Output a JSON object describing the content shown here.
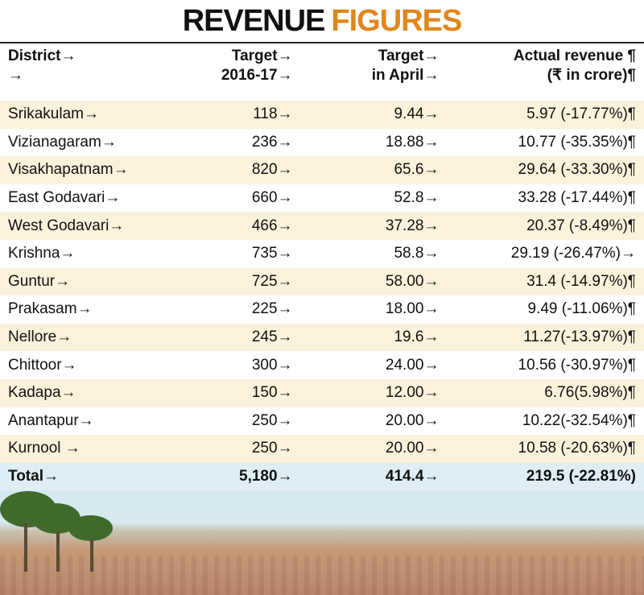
{
  "title": {
    "part1": "REVENUE",
    "part2": "FIGURES"
  },
  "headers": [
    {
      "line1": "District→",
      "line2": "→"
    },
    {
      "line1": "Target→",
      "line2": "2016-17→"
    },
    {
      "line1": "Target→",
      "line2": "in April→"
    },
    {
      "line1": "Actual revenue ¶",
      "line2": "(₹ in crore)¶"
    }
  ],
  "rows": [
    {
      "district": "Srikakulam→",
      "target": "118→",
      "april": "9.44→",
      "actual": "5.97 (-17.77%)¶"
    },
    {
      "district": "Vizianagaram→",
      "target": "236→",
      "april": "18.88→",
      "actual": "10.77 (-35.35%)¶"
    },
    {
      "district": "Visakhapatnam→",
      "target": "820→",
      "april": "65.6→",
      "actual": "29.64 (-33.30%)¶"
    },
    {
      "district": "East Godavari→",
      "target": "660→",
      "april": "52.8→",
      "actual": "33.28 (-17.44%)¶"
    },
    {
      "district": "West Godavari→",
      "target": "466→",
      "april": "37.28→",
      "actual": "20.37 (-8.49%)¶"
    },
    {
      "district": "Krishna→",
      "target": "735→",
      "april": "58.8→",
      "actual": "29.19 (-26.47%)→"
    },
    {
      "district": "Guntur→",
      "target": "725→",
      "april": "58.00→",
      "actual": "31.4 (-14.97%)¶"
    },
    {
      "district": "Prakasam→",
      "target": "225→",
      "april": "18.00→",
      "actual": "9.49 (-11.06%)¶"
    },
    {
      "district": "Nellore→",
      "target": "245→",
      "april": "19.6→",
      "actual": "11.27(-13.97%)¶"
    },
    {
      "district": "Chittoor→",
      "target": "300→",
      "april": "24.00→",
      "actual": "10.56 (-30.97%)¶"
    },
    {
      "district": "Kadapa→",
      "target": "150→",
      "april": "12.00→",
      "actual": "6.76(5.98%)¶"
    },
    {
      "district": "Anantapur→",
      "target": "250→",
      "april": "20.00→",
      "actual": "10.22(-32.54%)¶"
    },
    {
      "district": "Kurnool →",
      "target": "250→",
      "april": "20.00→",
      "actual": "10.58 (-20.63%)¶"
    }
  ],
  "total": {
    "district": "Total→",
    "target": "5,180→",
    "april": "414.4→",
    "actual": "219.5 (-22.81%)"
  }
}
